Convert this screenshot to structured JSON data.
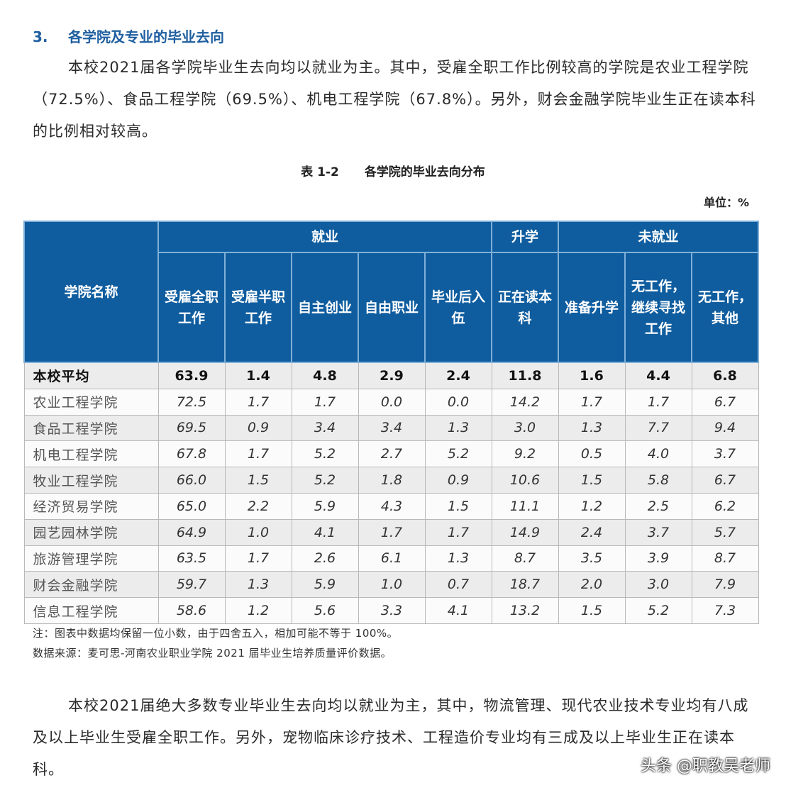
{
  "section": {
    "number": "3.",
    "title": "各学院及专业的毕业去向"
  },
  "intro": "本校2021届各学院毕业生去向均以就业为主。其中，受雇全职工作比例较高的学院是农业工程学院（72.5%）、食品工程学院（69.5%）、机电工程学院（67.8%）。另外，财会金融学院毕业生正在读本科的比例相对较高。",
  "table": {
    "caption_no": "表 1-2",
    "caption_title": "各学院的毕业去向分布",
    "unit": "单位：%",
    "name_header": "学院名称",
    "groups": [
      "就业",
      "升学",
      "未就业"
    ],
    "columns": [
      "受雇全职工作",
      "受雇半职工作",
      "自主创业",
      "自由职业",
      "毕业后入伍",
      "正在读本科",
      "准备升学",
      "无工作，继续寻找工作",
      "无工作，其他"
    ],
    "rows": [
      {
        "name": "本校平均",
        "values": [
          "63.9",
          "1.4",
          "4.8",
          "2.9",
          "2.4",
          "11.8",
          "1.6",
          "4.4",
          "6.8"
        ]
      },
      {
        "name": "农业工程学院",
        "values": [
          "72.5",
          "1.7",
          "1.7",
          "0.0",
          "0.0",
          "14.2",
          "1.7",
          "1.7",
          "6.7"
        ]
      },
      {
        "name": "食品工程学院",
        "values": [
          "69.5",
          "0.9",
          "3.4",
          "3.4",
          "1.3",
          "3.0",
          "1.3",
          "7.7",
          "9.4"
        ]
      },
      {
        "name": "机电工程学院",
        "values": [
          "67.8",
          "1.7",
          "5.2",
          "2.7",
          "5.2",
          "9.2",
          "0.5",
          "4.0",
          "3.7"
        ]
      },
      {
        "name": "牧业工程学院",
        "values": [
          "66.0",
          "1.5",
          "5.2",
          "1.8",
          "0.9",
          "10.6",
          "1.5",
          "5.8",
          "6.7"
        ]
      },
      {
        "name": "经济贸易学院",
        "values": [
          "65.0",
          "2.2",
          "5.9",
          "4.3",
          "1.5",
          "11.1",
          "1.2",
          "2.5",
          "6.2"
        ]
      },
      {
        "name": "园艺园林学院",
        "values": [
          "64.9",
          "1.0",
          "4.1",
          "1.7",
          "1.7",
          "14.9",
          "2.4",
          "3.7",
          "5.7"
        ]
      },
      {
        "name": "旅游管理学院",
        "values": [
          "63.5",
          "1.7",
          "2.6",
          "6.1",
          "1.3",
          "8.7",
          "3.5",
          "3.9",
          "8.7"
        ]
      },
      {
        "name": "财会金融学院",
        "values": [
          "59.7",
          "1.3",
          "5.9",
          "1.0",
          "0.7",
          "18.7",
          "2.0",
          "3.0",
          "7.9"
        ]
      },
      {
        "name": "信息工程学院",
        "values": [
          "58.6",
          "1.2",
          "5.6",
          "3.3",
          "4.1",
          "13.2",
          "1.5",
          "5.2",
          "7.3"
        ]
      }
    ],
    "note": "注：图表中数据均保留一位小数，由于四舍五入，相加可能不等于 100%。",
    "source": "数据来源：麦可思-河南农业职业学院 2021 届毕业生培养质量评价数据。"
  },
  "closing": "本校2021届绝大多数专业毕业生去向均以就业为主，其中，物流管理、现代农业技术专业均有八成及以上毕业生受雇全职工作。另外，宠物临床诊疗技术、工程造价专业均有三成及以上毕业生正在读本科。",
  "watermark": "头条 @职教吴老师",
  "colors": {
    "header_bg": "#0f5d9f",
    "heading": "#1f5fa0",
    "row_alt": "#ececec"
  }
}
